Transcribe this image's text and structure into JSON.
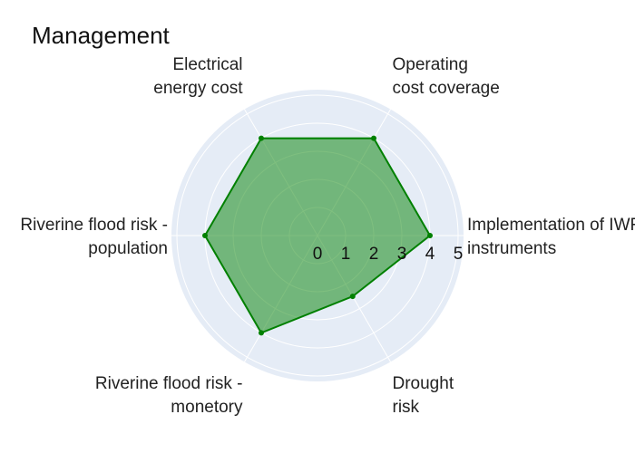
{
  "chart_data": {
    "type": "radar",
    "title": "Management",
    "axes": [
      {
        "lines": [
          "Implementation  of IWRM",
          "instruments"
        ]
      },
      {
        "lines": [
          "Operating",
          "cost coverage"
        ]
      },
      {
        "lines": [
          "Electrical",
          "energy cost"
        ]
      },
      {
        "lines": [
          "Riverine flood risk -",
          "population"
        ]
      },
      {
        "lines": [
          "Riverine flood risk -",
          "monetory"
        ]
      },
      {
        "lines": [
          "Drought",
          "risk"
        ]
      }
    ],
    "radial_ticks": [
      "0",
      "1",
      "2",
      "3",
      "4",
      "5"
    ],
    "rlim": [
      0,
      5
    ],
    "values": [
      4,
      4,
      4,
      4,
      4,
      2.5
    ],
    "grid": true,
    "legend": false,
    "colors": {
      "polar_background": "#e5ecf6",
      "grid": "#ffffff",
      "line": "#008000",
      "fill": "#008000",
      "fill_opacity": 0.5
    }
  }
}
